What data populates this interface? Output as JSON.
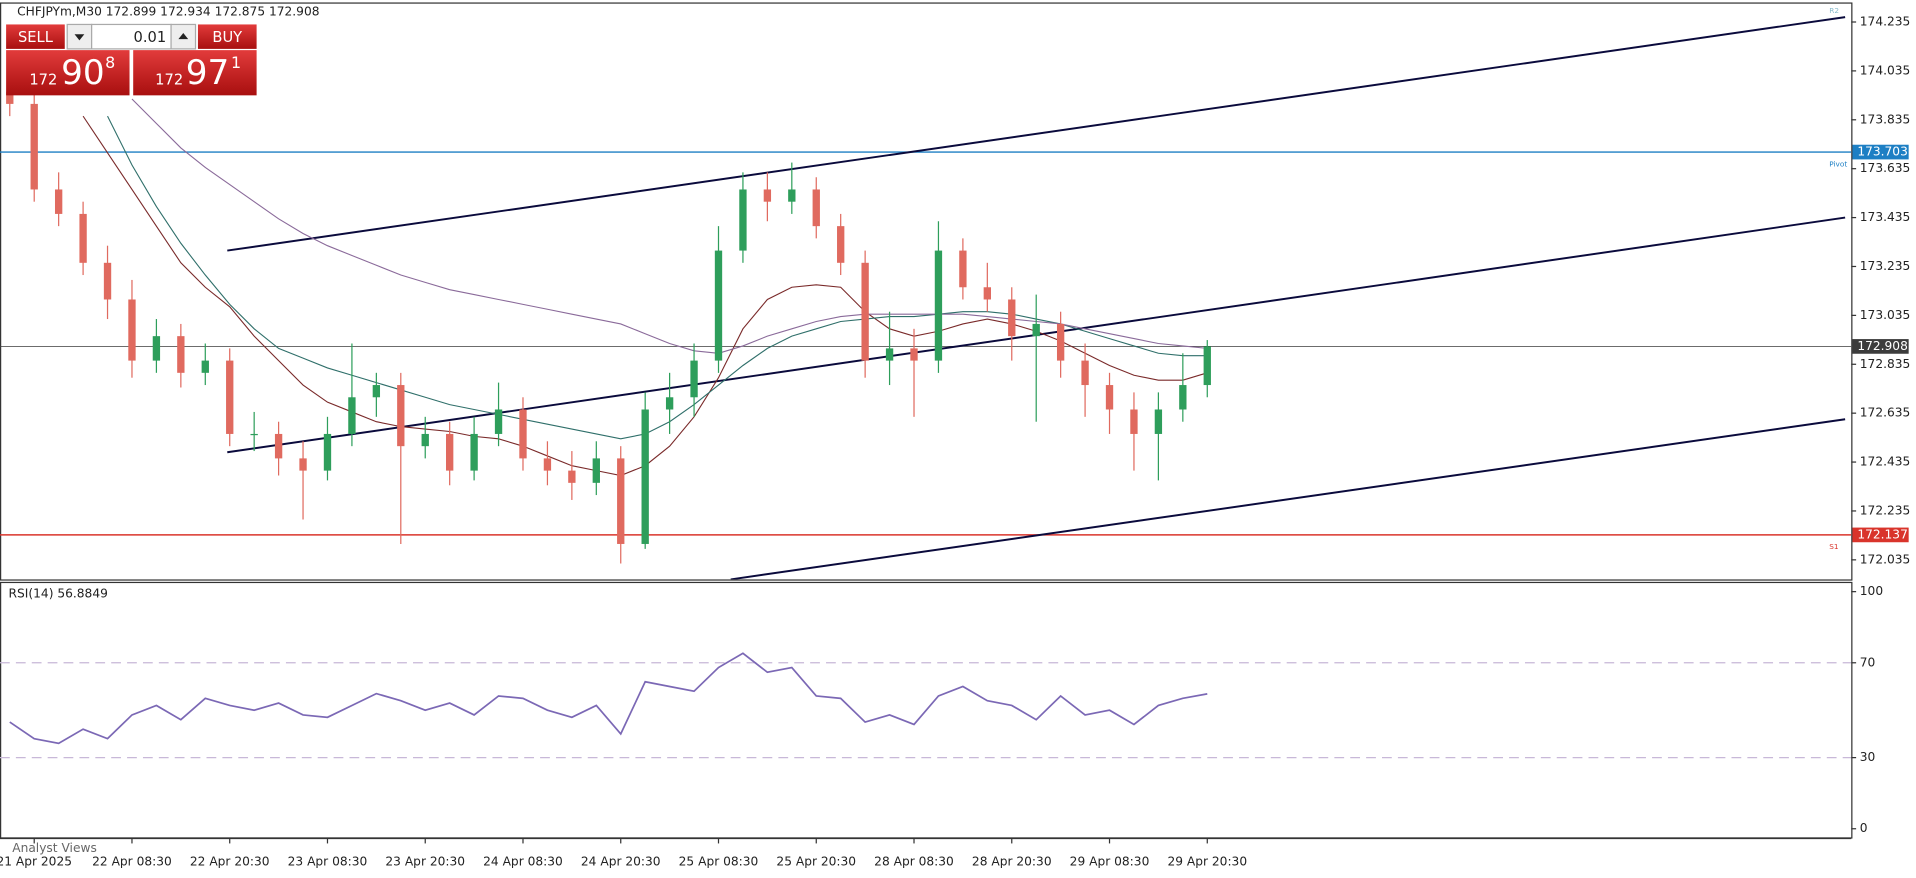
{
  "header": "CHFJPYm,M30  172.899 172.934 172.875 172.908",
  "trade_panel": {
    "sell": "SELL",
    "buy": "BUY",
    "lot": "0.01",
    "bid": [
      "172",
      "90",
      "8"
    ],
    "ask": [
      "172",
      "97",
      "1"
    ]
  },
  "chart_data": {
    "type": "candlestick",
    "up_color": "#2e9e5b",
    "down_color": "#e06a5f",
    "xlim": [
      -0.4,
      75.35
    ],
    "ylim": [
      171.955,
      174.3
    ],
    "yticks": [
      174.235,
      174.035,
      173.835,
      173.635,
      173.435,
      173.235,
      173.035,
      172.835,
      172.635,
      172.435,
      172.235,
      172.035
    ],
    "xticks": [
      {
        "value": 1,
        "label": "21 Apr 2025"
      },
      {
        "value": 5,
        "label": "22 Apr 08:30"
      },
      {
        "value": 9,
        "label": "22 Apr 20:30"
      },
      {
        "value": 13,
        "label": "23 Apr 08:30"
      },
      {
        "value": 17,
        "label": "23 Apr 20:30"
      },
      {
        "value": 21,
        "label": "24 Apr 08:30"
      },
      {
        "value": 25,
        "label": "24 Apr 20:30"
      },
      {
        "value": 29,
        "label": "25 Apr 08:30"
      },
      {
        "value": 33,
        "label": "25 Apr 20:30"
      },
      {
        "value": 37,
        "label": "28 Apr 08:30"
      },
      {
        "value": 41,
        "label": "28 Apr 20:30"
      },
      {
        "value": 45,
        "label": "29 Apr 08:30"
      },
      {
        "value": 49,
        "label": "29 Apr 20:30"
      }
    ],
    "ohlc": [
      [
        173.95,
        174.0,
        173.85,
        173.9
      ],
      [
        173.9,
        173.95,
        173.5,
        173.55
      ],
      [
        173.55,
        173.62,
        173.4,
        173.45
      ],
      [
        173.45,
        173.5,
        173.2,
        173.25
      ],
      [
        173.25,
        173.32,
        173.02,
        173.1
      ],
      [
        173.1,
        173.18,
        172.78,
        172.85
      ],
      [
        172.85,
        173.02,
        172.8,
        172.95
      ],
      [
        172.95,
        173.0,
        172.74,
        172.8
      ],
      [
        172.8,
        172.92,
        172.75,
        172.85
      ],
      [
        172.85,
        172.9,
        172.5,
        172.55
      ],
      [
        172.55,
        172.64,
        172.48,
        172.55
      ],
      [
        172.55,
        172.6,
        172.38,
        172.45
      ],
      [
        172.45,
        172.52,
        172.2,
        172.4
      ],
      [
        172.4,
        172.62,
        172.36,
        172.55
      ],
      [
        172.55,
        172.92,
        172.5,
        172.7
      ],
      [
        172.7,
        172.8,
        172.62,
        172.75
      ],
      [
        172.75,
        172.8,
        172.1,
        172.5
      ],
      [
        172.5,
        172.62,
        172.45,
        172.55
      ],
      [
        172.55,
        172.6,
        172.34,
        172.4
      ],
      [
        172.4,
        172.62,
        172.36,
        172.55
      ],
      [
        172.55,
        172.76,
        172.5,
        172.65
      ],
      [
        172.65,
        172.7,
        172.4,
        172.45
      ],
      [
        172.45,
        172.52,
        172.34,
        172.4
      ],
      [
        172.4,
        172.48,
        172.28,
        172.35
      ],
      [
        172.35,
        172.52,
        172.3,
        172.45
      ],
      [
        172.45,
        172.5,
        172.02,
        172.1
      ],
      [
        172.1,
        172.72,
        172.08,
        172.65
      ],
      [
        172.65,
        172.8,
        172.55,
        172.7
      ],
      [
        172.7,
        172.92,
        172.62,
        172.85
      ],
      [
        172.85,
        173.4,
        172.8,
        173.3
      ],
      [
        173.3,
        173.62,
        173.25,
        173.55
      ],
      [
        173.55,
        173.62,
        173.42,
        173.5
      ],
      [
        173.5,
        173.66,
        173.45,
        173.55
      ],
      [
        173.55,
        173.6,
        173.35,
        173.4
      ],
      [
        173.4,
        173.45,
        173.2,
        173.25
      ],
      [
        173.25,
        173.3,
        172.78,
        172.85
      ],
      [
        172.85,
        173.05,
        172.75,
        172.9
      ],
      [
        172.9,
        172.98,
        172.62,
        172.85
      ],
      [
        172.85,
        173.42,
        172.8,
        173.3
      ],
      [
        173.3,
        173.35,
        173.1,
        173.15
      ],
      [
        173.15,
        173.25,
        173.05,
        173.1
      ],
      [
        173.1,
        173.15,
        172.85,
        172.95
      ],
      [
        172.95,
        173.12,
        172.6,
        173.0
      ],
      [
        173.0,
        173.05,
        172.78,
        172.85
      ],
      [
        172.85,
        172.92,
        172.62,
        172.75
      ],
      [
        172.75,
        172.8,
        172.55,
        172.65
      ],
      [
        172.65,
        172.72,
        172.4,
        172.55
      ],
      [
        172.55,
        172.72,
        172.36,
        172.65
      ],
      [
        172.65,
        172.88,
        172.6,
        172.75
      ],
      [
        172.75,
        172.934,
        172.7,
        172.908
      ]
    ],
    "series": [
      {
        "color": "#7a2a2a",
        "values": [
          null,
          null,
          null,
          173.85,
          173.7,
          173.55,
          173.4,
          173.25,
          173.15,
          173.07,
          172.95,
          172.85,
          172.75,
          172.68,
          172.64,
          172.6,
          172.58,
          172.57,
          172.56,
          172.54,
          172.53,
          172.5,
          172.46,
          172.42,
          172.4,
          172.38,
          172.42,
          172.5,
          172.62,
          172.78,
          172.98,
          173.1,
          173.15,
          173.16,
          173.15,
          173.05,
          172.98,
          172.95,
          172.97,
          173.0,
          173.02,
          173.0,
          172.97,
          172.93,
          172.88,
          172.83,
          172.79,
          172.77,
          172.77,
          172.8
        ]
      },
      {
        "color": "#2f6f6a",
        "values": [
          null,
          null,
          null,
          null,
          173.85,
          173.65,
          173.48,
          173.33,
          173.2,
          173.08,
          172.98,
          172.9,
          172.86,
          172.82,
          172.79,
          172.76,
          172.73,
          172.7,
          172.67,
          172.65,
          172.63,
          172.61,
          172.59,
          172.57,
          172.55,
          172.53,
          172.55,
          172.6,
          172.67,
          172.75,
          172.83,
          172.9,
          172.95,
          172.98,
          173.01,
          173.02,
          173.03,
          173.03,
          173.04,
          173.05,
          173.05,
          173.04,
          173.02,
          173.0,
          172.97,
          172.94,
          172.91,
          172.88,
          172.87,
          172.87
        ]
      },
      {
        "color": "#8a6a9a",
        "values": [
          null,
          null,
          null,
          null,
          null,
          173.92,
          173.82,
          173.72,
          173.64,
          173.57,
          173.5,
          173.43,
          173.37,
          173.32,
          173.28,
          173.24,
          173.2,
          173.17,
          173.14,
          173.12,
          173.1,
          173.08,
          173.06,
          173.04,
          173.02,
          173.0,
          172.96,
          172.92,
          172.89,
          172.88,
          172.91,
          172.95,
          172.98,
          173.01,
          173.03,
          173.04,
          173.04,
          173.04,
          173.04,
          173.04,
          173.03,
          173.02,
          173.01,
          173.0,
          172.98,
          172.96,
          172.94,
          172.92,
          172.91,
          172.9
        ]
      }
    ],
    "channel": [
      {
        "x": [
          8.9,
          75.1
        ],
        "y": [
          173.3,
          174.255
        ]
      },
      {
        "x": [
          8.9,
          75.1
        ],
        "y": [
          172.475,
          173.435
        ]
      },
      {
        "x": [
          29.5,
          75.1
        ],
        "y": [
          171.955,
          172.61
        ]
      }
    ],
    "levels": [
      {
        "value": 173.703,
        "color": "#1d7fc4",
        "name": "Pivot"
      },
      {
        "value": 172.137,
        "color": "#d9342b",
        "name": "S1"
      },
      {
        "value": 172.908,
        "color": "#3c3c3c"
      }
    ],
    "r2_label": "R2"
  },
  "rsi": {
    "type": "line",
    "label": "RSI(14) 56.8849",
    "color": "#7b68b5",
    "ylim": [
      -3.1,
      103.1
    ],
    "yticks": [
      100,
      70,
      30,
      0
    ],
    "levels": [
      70,
      30
    ],
    "values": [
      45,
      38,
      36,
      42,
      38,
      48,
      52,
      46,
      55,
      52,
      50,
      53,
      48,
      47,
      52,
      57,
      54,
      50,
      53,
      48,
      56,
      55,
      50,
      47,
      52,
      40,
      62,
      60,
      58,
      68,
      74,
      66,
      68,
      56,
      55,
      45,
      48,
      44,
      56,
      60,
      54,
      52,
      46,
      56,
      48,
      50,
      44,
      52,
      55,
      56.8849
    ]
  },
  "footer": "Analyst Views"
}
